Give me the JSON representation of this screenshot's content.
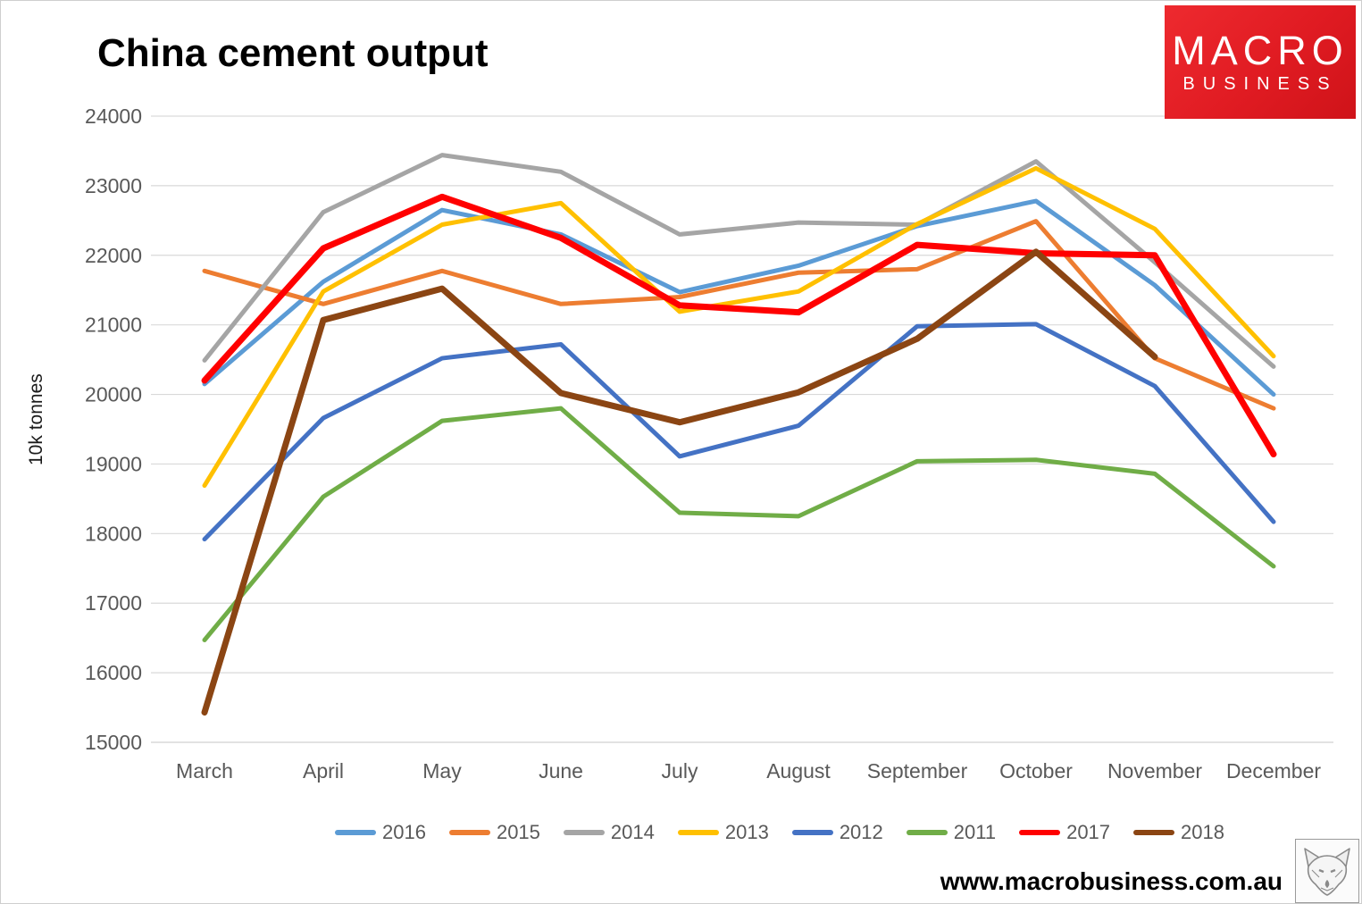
{
  "title": "China cement output",
  "y_axis_title": "10k tonnes",
  "logo": {
    "line1": "MACRO",
    "line2": "BUSINESS",
    "bg_color": "#e01b22",
    "text_color": "#ffffff"
  },
  "footer": {
    "url": "www.macrobusiness.com.au"
  },
  "colors": {
    "grid": "#d9d9d9",
    "axis_text": "#595959",
    "background": "#ffffff"
  },
  "chart_data": {
    "type": "line",
    "title": "China cement output",
    "xlabel": "",
    "ylabel": "10k tonnes",
    "ylim": [
      15000,
      24000
    ],
    "ytick_step": 1000,
    "grid": "horizontal",
    "legend_position": "bottom",
    "categories": [
      "March",
      "April",
      "May",
      "June",
      "July",
      "August",
      "September",
      "October",
      "November",
      "December"
    ],
    "series": [
      {
        "name": "2016",
        "color": "#5B9BD5",
        "width": 5,
        "values": [
          20150,
          21620,
          22650,
          22300,
          21470,
          21850,
          22420,
          22780,
          21570,
          20000
        ]
      },
      {
        "name": "2015",
        "color": "#ED7D31",
        "width": 5,
        "values": [
          21775,
          21300,
          21775,
          21300,
          21400,
          21750,
          21800,
          22490,
          20520,
          19800
        ]
      },
      {
        "name": "2014",
        "color": "#A5A5A5",
        "width": 5,
        "values": [
          20490,
          22620,
          23440,
          23200,
          22300,
          22470,
          22440,
          23350,
          21900,
          20400
        ]
      },
      {
        "name": "2013",
        "color": "#FFC000",
        "width": 5,
        "values": [
          18690,
          21480,
          22440,
          22750,
          21190,
          21480,
          22450,
          23250,
          22380,
          20550
        ]
      },
      {
        "name": "2012",
        "color": "#4472C4",
        "width": 5,
        "values": [
          17920,
          19660,
          20520,
          20720,
          19110,
          19550,
          20980,
          21010,
          20120,
          18170
        ]
      },
      {
        "name": "2011",
        "color": "#70AD47",
        "width": 5,
        "values": [
          16470,
          18530,
          19620,
          19800,
          18300,
          18250,
          19040,
          19060,
          18860,
          17530
        ]
      },
      {
        "name": "2017",
        "color": "#FF0000",
        "width": 7,
        "values": [
          20200,
          22100,
          22840,
          22250,
          21280,
          21180,
          22150,
          22030,
          22000,
          19140
        ]
      },
      {
        "name": "2018",
        "color": "#8B4513",
        "width": 7,
        "values": [
          15430,
          21070,
          21520,
          20020,
          19600,
          20030,
          20800,
          22050,
          20540,
          null
        ]
      }
    ]
  }
}
